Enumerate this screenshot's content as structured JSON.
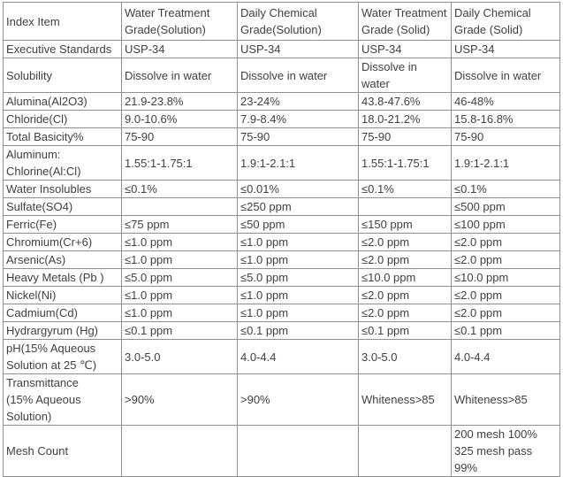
{
  "table": {
    "colors": {
      "border": "#909090",
      "text": "#404040",
      "background": "#ffffff"
    },
    "columns": [
      {
        "label": "Index Item"
      },
      {
        "label": "Water Treatment\nGrade(Solution)"
      },
      {
        "label": "Daily Chemical\nGrade(Solution)"
      },
      {
        "label": "Water Treatment\nGrade (Solid)"
      },
      {
        "label": "Daily Chemical\nGrade (Solid)"
      }
    ],
    "rows": [
      {
        "label": "Executive Standards",
        "values": [
          "USP-34",
          "USP-34",
          "USP-34",
          "USP-34"
        ]
      },
      {
        "label": "Solubility",
        "values": [
          "Dissolve in water",
          "Dissolve in water",
          "Dissolve in water",
          "Dissolve in water"
        ]
      },
      {
        "label": "Alumina(Al2O3)",
        "values": [
          "21.9-23.8%",
          "23-24%",
          "43.8-47.6%",
          "46-48%"
        ]
      },
      {
        "label": "Chloride(Cl)",
        "values": [
          "9.0-10.6%",
          "7.9-8.4%",
          "18.0-21.2%",
          "15.8-16.8%"
        ]
      },
      {
        "label": "Total Basicity%",
        "values": [
          "75-90",
          "75-90",
          "75-90",
          "75-90"
        ]
      },
      {
        "label": "Aluminum:\nChlorine(Al:Cl)",
        "values": [
          "1.55:1-1.75:1",
          "1.9:1-2.1:1",
          "1.55:1-1.75:1",
          "1.9:1-2.1:1"
        ]
      },
      {
        "label": "Water Insolubles",
        "values": [
          "≤0.1%",
          "≤0.01%",
          "≤0.1%",
          "≤0.1%"
        ]
      },
      {
        "label": "Sulfate(SO4)",
        "values": [
          "",
          "≤250 ppm",
          "",
          "≤500 ppm"
        ]
      },
      {
        "label": "Ferric(Fe)",
        "values": [
          "≤75 ppm",
          "≤50 ppm",
          "≤150 ppm",
          "≤100 ppm"
        ]
      },
      {
        "label": "Chromium(Cr+6)",
        "values": [
          "≤1.0 ppm",
          "≤1.0 ppm",
          "≤2.0 ppm",
          "≤2.0 ppm"
        ]
      },
      {
        "label": "Arsenic(As)",
        "values": [
          "≤1.0 ppm",
          "≤1.0 ppm",
          "≤2.0 ppm",
          "≤2.0 ppm"
        ]
      },
      {
        "label": "Heavy Metals (Pb )",
        "values": [
          "≤5.0 ppm",
          "≤5.0 ppm",
          "≤10.0 ppm",
          "≤10.0 ppm"
        ]
      },
      {
        "label": "Nickel(Ni)",
        "values": [
          "≤1.0 ppm",
          "≤1.0 ppm",
          "≤2.0 ppm",
          "≤2.0 ppm"
        ]
      },
      {
        "label": "Cadmium(Cd)",
        "values": [
          "≤1.0 ppm",
          "≤1.0 ppm",
          "≤2.0 ppm",
          "≤2.0 ppm"
        ]
      },
      {
        "label": "Hydrargyrum (Hg)",
        "values": [
          "≤0.1 ppm",
          "≤0.1 ppm",
          "≤0.1 ppm",
          "≤0.1 ppm"
        ]
      },
      {
        "label": "pH(15% Aqueous\nSolution at 25 ℃)",
        "values": [
          "3.0-5.0",
          "4.0-4.4",
          "3.0-5.0",
          "4.0-4.4"
        ]
      },
      {
        "label": "Transmittance\n(15% Aqueous\nSolution)",
        "label_align": "center",
        "values": [
          ">90%",
          ">90%",
          "Whiteness>85",
          "Whiteness>85"
        ]
      },
      {
        "label": "Mesh Count",
        "values": [
          "",
          "",
          "",
          "200 mesh 100%\n325 mesh pass\n99%"
        ],
        "value_aligns": [
          "left",
          "left",
          "left",
          "center"
        ]
      }
    ]
  }
}
